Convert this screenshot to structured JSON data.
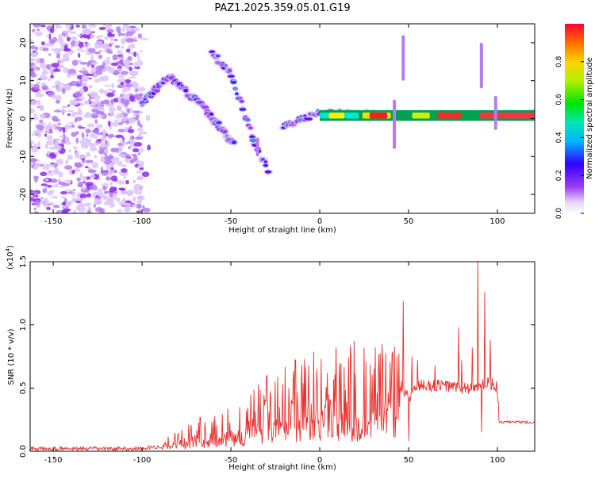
{
  "title": "PAZ1.2025.359.05.01.G19",
  "chart_data": [
    {
      "type": "heatmap",
      "title": "PAZ1.2025.359.05.01.G19",
      "xlabel": "Height of straight line (km)",
      "ylabel": "Frequency (Hz)",
      "xlim": [
        -163,
        121
      ],
      "ylim": [
        -25,
        25
      ],
      "x_ticks": [
        -150,
        -100,
        -50,
        0,
        50,
        100
      ],
      "y_ticks": [
        -20,
        -10,
        0,
        10,
        20
      ],
      "colorbar": {
        "label": "Normalized spectral amplitude",
        "range": [
          0.0,
          1.0
        ],
        "ticks": [
          "0.0",
          "0.2",
          "0.4",
          "0.6",
          "0.8"
        ]
      },
      "features": [
        {
          "name": "noise region",
          "x_range": [
            -163,
            -100
          ],
          "freq_range": [
            -25,
            25
          ],
          "amplitude": "0.1-0.3"
        },
        {
          "name": "primary track",
          "points": [
            [
              -100,
              4
            ],
            [
              -85,
              11
            ],
            [
              -75,
              7
            ],
            [
              -65,
              3
            ],
            [
              -55,
              -3
            ],
            [
              -48,
              -7
            ]
          ]
        },
        {
          "name": "secondary track",
          "points": [
            [
              -60,
              17
            ],
            [
              -50,
              12
            ],
            [
              -45,
              5
            ],
            [
              -38,
              -5
            ],
            [
              -28,
              -15
            ]
          ]
        },
        {
          "name": "central track",
          "points": [
            [
              -20,
              -2
            ],
            [
              -10,
              0
            ],
            [
              0,
              1.5
            ],
            [
              50,
              1
            ],
            [
              100,
              1
            ],
            [
              121,
              1
            ]
          ]
        }
      ]
    },
    {
      "type": "line",
      "xlabel": "Height of straight line (km)",
      "ylabel": "SNR (10 * v/v)",
      "scale_label": "(x10",
      "scale_exponent": "4",
      "scale_close": ")",
      "xlim": [
        -163,
        121
      ],
      "ylim": [
        0.0,
        1.5
      ],
      "x_ticks": [
        -150,
        -100,
        -50,
        0,
        50,
        100
      ],
      "y_ticks": [
        "0.0",
        "0.5",
        "1.0",
        "1.5"
      ],
      "series": [
        {
          "name": "SNR",
          "color": "#e8302f",
          "envelope_x": [
            -163,
            -100,
            -90,
            -80,
            -70,
            -60,
            -50,
            -40,
            -30,
            -20,
            -10,
            0,
            10,
            20,
            30,
            40,
            45,
            48,
            50,
            55,
            60,
            70,
            80,
            90,
            95,
            100,
            101,
            110,
            121
          ],
          "envelope_y": [
            0.02,
            0.02,
            0.04,
            0.1,
            0.14,
            0.18,
            0.23,
            0.3,
            0.34,
            0.38,
            0.42,
            0.45,
            0.48,
            0.5,
            0.52,
            0.53,
            0.54,
            0.45,
            0.42,
            0.52,
            0.52,
            0.52,
            0.5,
            0.5,
            0.55,
            0.5,
            0.23,
            0.23,
            0.23
          ],
          "spikes": [
            [
              47,
              1.19
            ],
            [
              50,
              0.08
            ],
            [
              52,
              0.75
            ],
            [
              55,
              0.72
            ],
            [
              65,
              0.68
            ],
            [
              78,
              0.98
            ],
            [
              80,
              0.72
            ],
            [
              86,
              0.82
            ],
            [
              89,
              1.51
            ],
            [
              91,
              0.15
            ],
            [
              93,
              1.26
            ],
            [
              96,
              0.88
            ]
          ]
        }
      ]
    }
  ]
}
